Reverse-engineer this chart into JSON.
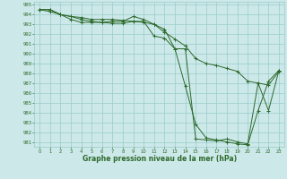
{
  "line1": {
    "x": [
      0,
      1,
      2,
      3,
      4,
      5,
      6,
      7,
      8,
      9,
      10,
      11,
      12,
      13,
      14,
      15,
      16,
      17,
      18,
      19,
      20,
      21,
      22,
      23
    ],
    "y": [
      994.5,
      994.5,
      994.0,
      993.8,
      993.5,
      993.3,
      993.2,
      993.3,
      993.3,
      993.8,
      993.5,
      993.0,
      992.5,
      990.5,
      990.5,
      981.3,
      981.2,
      981.1,
      981.3,
      981.0,
      980.8,
      987.0,
      984.2,
      988.3
    ],
    "color": "#2d6a2d",
    "marker": "+"
  },
  "line2": {
    "x": [
      0,
      1,
      2,
      3,
      4,
      5,
      6,
      7,
      8,
      9,
      10,
      11,
      12,
      13,
      14,
      15,
      16,
      17,
      18,
      19,
      20,
      21,
      22,
      23
    ],
    "y": [
      994.5,
      994.5,
      994.0,
      993.5,
      993.2,
      993.2,
      993.2,
      993.1,
      993.1,
      993.3,
      993.3,
      991.8,
      991.6,
      990.5,
      986.7,
      982.8,
      981.4,
      981.2,
      981.0,
      980.8,
      980.7,
      984.2,
      987.2,
      988.3
    ],
    "color": "#2d6a2d",
    "marker": "+"
  },
  "line3": {
    "x": [
      0,
      1,
      2,
      3,
      4,
      5,
      6,
      7,
      8,
      9,
      10,
      11,
      12,
      13,
      14,
      15,
      16,
      17,
      18,
      19,
      20,
      21,
      22,
      23
    ],
    "y": [
      994.5,
      994.3,
      994.0,
      993.8,
      993.7,
      993.5,
      993.5,
      993.5,
      993.4,
      993.3,
      993.2,
      993.0,
      992.2,
      991.5,
      990.8,
      989.5,
      989.0,
      988.8,
      988.5,
      988.2,
      987.2,
      987.0,
      986.8,
      988.2
    ],
    "color": "#2d6a2d",
    "marker": "+"
  },
  "ylim": [
    981,
    995
  ],
  "xlim": [
    -0.5,
    23.5
  ],
  "yticks": [
    981,
    982,
    983,
    984,
    985,
    986,
    987,
    988,
    989,
    990,
    991,
    992,
    993,
    994,
    995
  ],
  "xticks": [
    0,
    1,
    2,
    3,
    4,
    5,
    6,
    7,
    8,
    9,
    10,
    11,
    12,
    13,
    14,
    15,
    16,
    17,
    18,
    19,
    20,
    21,
    22,
    23
  ],
  "xlabel": "Graphe pression niveau de la mer (hPa)",
  "bg_color": "#cce8e8",
  "grid_color": "#99cccc",
  "line_color": "#2d6a2d",
  "tick_color": "#2d6a2d",
  "label_color": "#2d6a2d"
}
